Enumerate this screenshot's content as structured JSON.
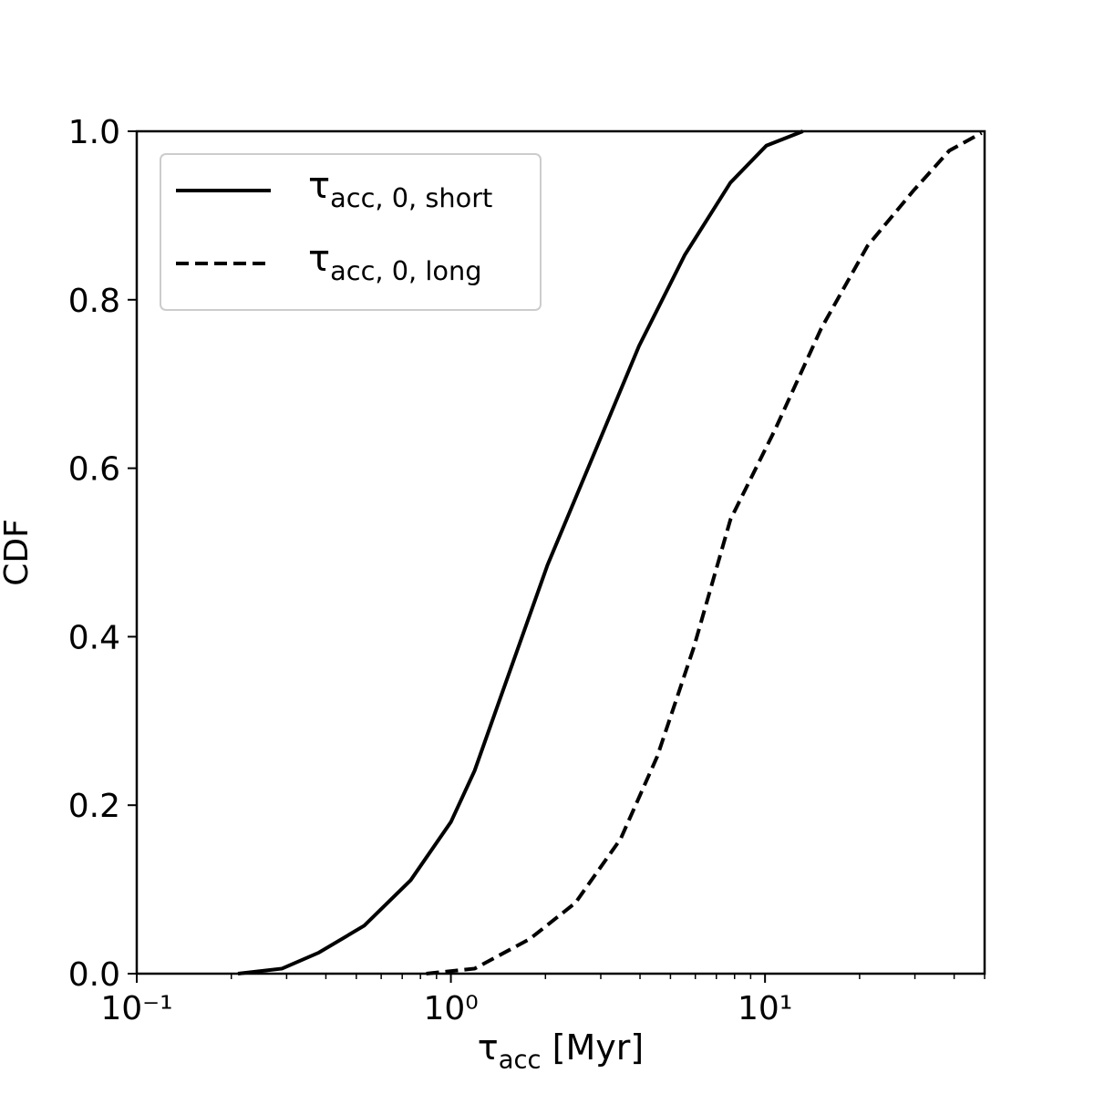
{
  "chart_data": {
    "type": "line",
    "x_label": "τacc [Myr]",
    "y_label": "CDF",
    "xscale": "log",
    "xlim": [
      0.1,
      50
    ],
    "ylim": [
      0,
      1
    ],
    "xticks": [
      {
        "value": 0.1,
        "label": "10⁻¹"
      },
      {
        "value": 1,
        "label": "10⁰"
      },
      {
        "value": 10,
        "label": "10¹"
      }
    ],
    "yticks": [
      {
        "value": 0,
        "label": "0.0"
      },
      0.2,
      0.4,
      0.6,
      0.8,
      {
        "value": 1,
        "label": "1.0"
      }
    ],
    "legend": "upper left",
    "series": [
      {
        "name": "τacc, 0, short",
        "color": "#000000",
        "style": "solid",
        "x": [
          0.21,
          0.29,
          0.38,
          0.53,
          0.745,
          1.0,
          1.19,
          1.455,
          2.03,
          2.84,
          3.97,
          5.55,
          7.76,
          10.1,
          13.2
        ],
        "values": [
          0,
          0.006,
          0.025,
          0.057,
          0.111,
          0.18,
          0.241,
          0.333,
          0.485,
          0.615,
          0.745,
          0.853,
          0.939,
          0.983,
          1.0
        ]
      },
      {
        "name": "τacc, 0, long",
        "color": "#000000",
        "style": "dashed",
        "x": [
          0.835,
          1.19,
          1.78,
          2.49,
          3.47,
          4.54,
          5.93,
          7.76,
          10.8,
          15.1,
          21.2,
          29.6,
          38.6,
          48.9
        ],
        "values": [
          0,
          0.006,
          0.041,
          0.084,
          0.16,
          0.258,
          0.387,
          0.539,
          0.647,
          0.766,
          0.864,
          0.929,
          0.977,
          0.998
        ]
      }
    ]
  }
}
